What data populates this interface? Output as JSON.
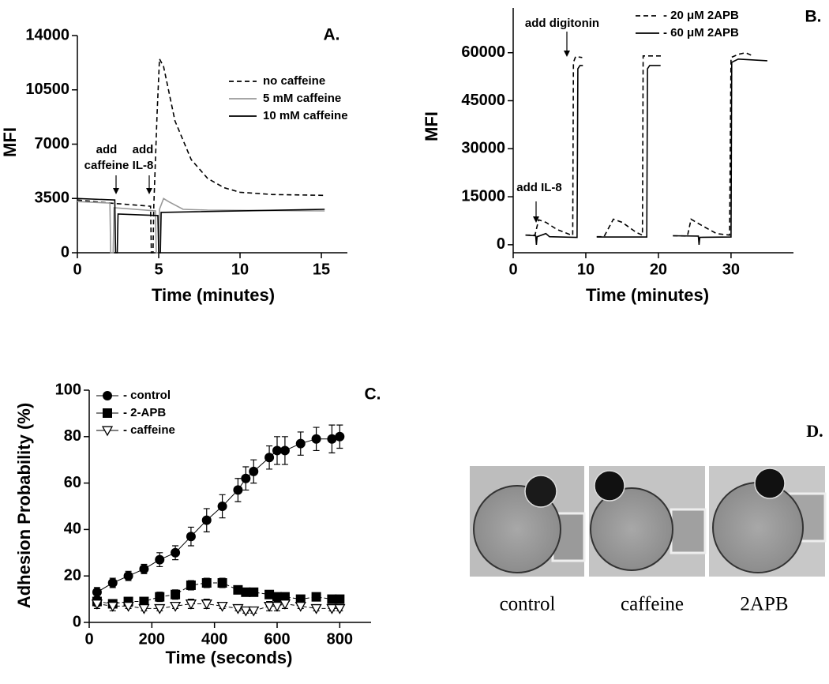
{
  "chart_data": [
    {
      "type": "line",
      "panel": "A.",
      "xlabel": "Time (minutes)",
      "ylabel": "MFI",
      "xlim": [
        0,
        16.6
      ],
      "ylim": [
        0,
        14000
      ],
      "xticks": [
        0,
        5,
        10,
        15
      ],
      "yticks": [
        0,
        3500,
        7000,
        10500,
        14000
      ],
      "annotations": [
        {
          "text": [
            "add",
            "caffeine"
          ]
        },
        {
          "text": [
            "add",
            "IL-8"
          ]
        }
      ],
      "series": [
        {
          "name": "no caffeine",
          "color": "#000000",
          "dash": "6,4",
          "x": [
            0,
            2,
            4.5,
            4.55,
            4.65,
            4.7,
            4.9,
            5.05,
            5.3,
            6,
            7,
            8,
            9,
            10,
            12,
            15.2
          ],
          "values": [
            3400,
            3200,
            3000,
            0,
            0,
            3000,
            9000,
            12500,
            12000,
            8500,
            6000,
            4800,
            4200,
            3900,
            3750,
            3700
          ]
        },
        {
          "name": "5 mM caffeine",
          "color": "#999999",
          "dash": "none",
          "x": [
            0,
            2,
            2.05,
            2.2,
            2.25,
            4.8,
            4.85,
            5,
            5.05,
            5.3,
            5.6,
            6.5,
            8,
            15.2
          ],
          "values": [
            3300,
            3200,
            0,
            0,
            2900,
            2700,
            0,
            0,
            2800,
            3500,
            3300,
            2800,
            2750,
            2700
          ]
        },
        {
          "name": "10 mM caffeine",
          "color": "#000000",
          "dash": "none",
          "x": [
            0,
            2.3,
            2.35,
            2.45,
            2.5,
            4.95,
            5,
            5.1,
            5.15,
            15.2
          ],
          "values": [
            3500,
            3400,
            0,
            0,
            2500,
            2400,
            0,
            0,
            2600,
            2800
          ]
        }
      ]
    },
    {
      "type": "line",
      "panel": "B.",
      "xlabel": "Time (minutes)",
      "ylabel": "MFI",
      "xlim": [
        0,
        38.6
      ],
      "ylim": [
        -2500,
        74000
      ],
      "xticks": [
        0,
        10,
        20,
        30
      ],
      "yticks": [
        0,
        15000,
        30000,
        45000,
        60000
      ],
      "annotations": [
        {
          "text": [
            "add IL-8"
          ]
        },
        {
          "text": [
            "add digitonin"
          ]
        }
      ],
      "series": [
        {
          "name": "- 20 μM 2APB",
          "color": "#000000",
          "dash": "6,4",
          "x": [
            1.7,
            3,
            3.5,
            4.5,
            6,
            7.8,
            8.2,
            8.3,
            8.6,
            9.5,
            null,
            11.5,
            12.5,
            13.8,
            15,
            17,
            17.8,
            17.9,
            18.5,
            20.5,
            null,
            22,
            24,
            24.5,
            26,
            28,
            29.8,
            30,
            31,
            32,
            33
          ],
          "values": [
            3000,
            3000,
            7800,
            7000,
            4800,
            3200,
            3000,
            57000,
            58800,
            58500,
            null,
            2500,
            2500,
            8000,
            7000,
            3800,
            3000,
            59000,
            59000,
            59000,
            null,
            2800,
            2700,
            8000,
            6000,
            3500,
            3000,
            58500,
            59500,
            60000,
            59000
          ]
        },
        {
          "name": "- 60 μM 2APB",
          "color": "#000000",
          "dash": "none",
          "x": [
            1.7,
            3.1,
            3.2,
            3.3,
            4.5,
            5,
            8.8,
            8.9,
            9.2,
            9.6,
            null,
            11.5,
            18.4,
            18.5,
            18.8,
            20.3,
            null,
            22,
            25.5,
            25.6,
            25.7,
            30,
            30.1,
            31,
            35
          ],
          "values": [
            3000,
            2800,
            0,
            2500,
            3500,
            2500,
            2300,
            55000,
            56000,
            56000,
            null,
            2400,
            2400,
            55000,
            56000,
            56000,
            null,
            2800,
            2700,
            0,
            2300,
            2400,
            57000,
            58000,
            57500
          ]
        }
      ]
    },
    {
      "type": "scatter",
      "panel": "C.",
      "xlabel": "Time (seconds)",
      "ylabel": "Adhesion Probability (%)",
      "xlim": [
        0,
        900
      ],
      "ylim": [
        0,
        100
      ],
      "xticks": [
        0,
        200,
        400,
        600,
        800
      ],
      "yticks": [
        0,
        20,
        40,
        60,
        80,
        100
      ],
      "series": [
        {
          "name": "- control",
          "color": "#000000",
          "marker": "circle",
          "x": [
            25,
            75,
            125,
            175,
            225,
            275,
            325,
            375,
            425,
            475,
            500,
            525,
            575,
            600,
            625,
            675,
            725,
            775,
            800
          ],
          "values": [
            13,
            17,
            20,
            23,
            27,
            30,
            37,
            44,
            50,
            57,
            62,
            65,
            71,
            74,
            74,
            77,
            79,
            79,
            80
          ],
          "errors": [
            2,
            2,
            2,
            2,
            3,
            3,
            4,
            5,
            5,
            5,
            5,
            5,
            5,
            6,
            6,
            5,
            5,
            6,
            5
          ]
        },
        {
          "name": "- 2-APB",
          "color": "#000000",
          "marker": "square",
          "x": [
            25,
            75,
            125,
            175,
            225,
            275,
            325,
            375,
            425,
            475,
            500,
            525,
            575,
            600,
            625,
            675,
            725,
            775,
            800
          ],
          "values": [
            9,
            8,
            9,
            9,
            11,
            12,
            16,
            17,
            17,
            14,
            13,
            13,
            12,
            11,
            11,
            10,
            11,
            10,
            10
          ],
          "errors": [
            2,
            1,
            1,
            1,
            2,
            2,
            2,
            2,
            2,
            1,
            1,
            1,
            1,
            1,
            1,
            1,
            1,
            1,
            1
          ]
        },
        {
          "name": "- caffeine",
          "color": "#000000",
          "marker": "triangle",
          "x": [
            25,
            75,
            125,
            175,
            225,
            275,
            325,
            375,
            425,
            475,
            500,
            525,
            575,
            600,
            625,
            675,
            725,
            775,
            800
          ],
          "values": [
            8,
            7,
            7,
            6,
            6,
            7,
            8,
            8,
            7,
            6,
            5,
            5,
            7,
            7,
            8,
            7,
            6,
            6,
            6
          ],
          "errors": [
            2,
            2,
            1,
            1,
            1,
            1,
            2,
            2,
            1,
            1,
            1,
            1,
            2,
            2,
            2,
            1,
            1,
            1,
            1
          ]
        }
      ]
    }
  ],
  "figure_d": {
    "panel": "D.",
    "captions": [
      "control",
      "caffeine",
      "2APB"
    ]
  }
}
